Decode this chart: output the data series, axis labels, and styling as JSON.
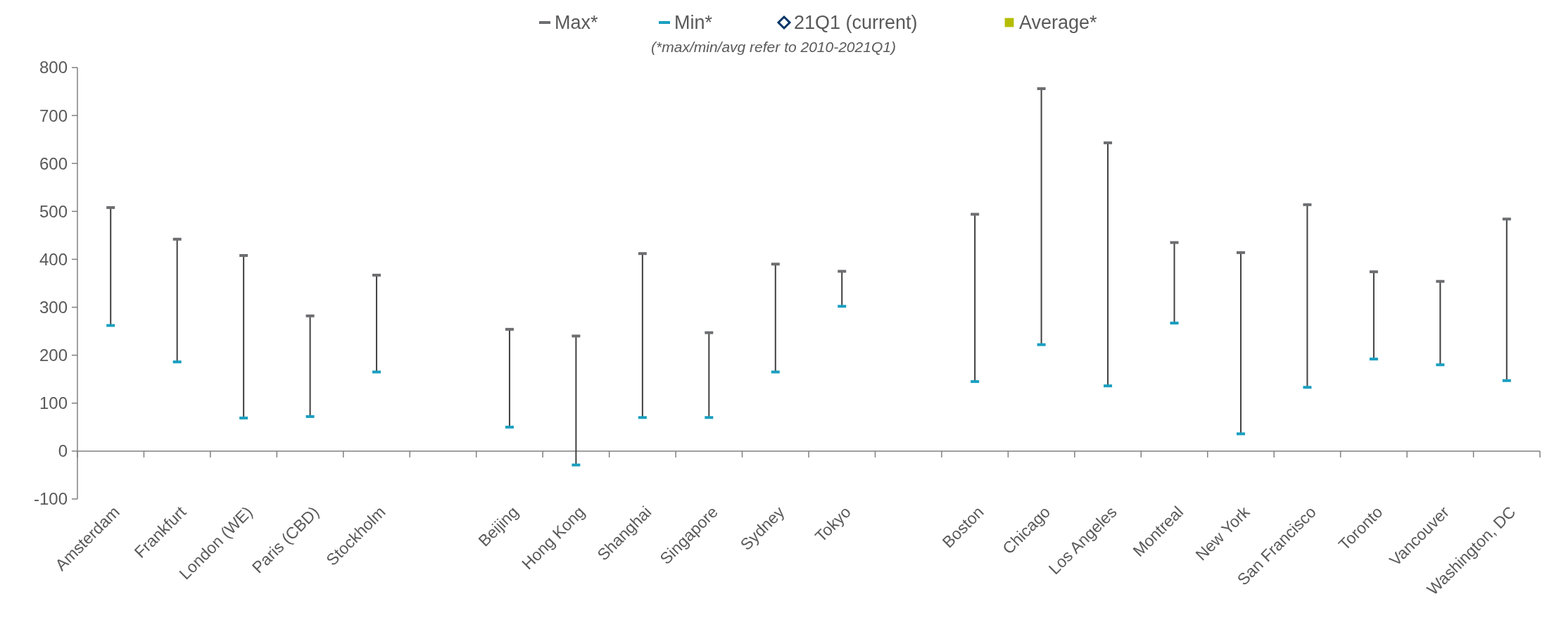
{
  "chart_data": {
    "type": "scatter",
    "categories": [
      "Amsterdam",
      "Frankfurt",
      "London (WE)",
      "Paris (CBD)",
      "Stockholm",
      null,
      "Beijing",
      "Hong Kong",
      "Shanghai",
      "Singapore",
      "Sydney",
      "Tokyo",
      null,
      "Boston",
      "Chicago",
      "Los Angeles",
      "Montreal",
      "New York",
      "San Francisco",
      "Toronto",
      "Vancouver",
      "Washington, DC"
    ],
    "series": [
      {
        "name": "Max*",
        "color": "#6d6e71",
        "values": [
          508,
          442,
          408,
          282,
          367,
          null,
          254,
          240,
          412,
          247,
          390,
          375,
          null,
          494,
          756,
          643,
          435,
          414,
          514,
          374,
          354,
          484
        ]
      },
      {
        "name": "Min*",
        "color": "#1a9fc0",
        "values": [
          262,
          186,
          69,
          72,
          165,
          null,
          50,
          -29,
          70,
          70,
          165,
          302,
          null,
          145,
          222,
          136,
          267,
          36,
          133,
          192,
          180,
          147
        ]
      },
      {
        "name": "21Q1 (current)",
        "color": "#003366",
        "marker": "diamond",
        "values": [
          null,
          null,
          null,
          null,
          null,
          null,
          null,
          null,
          null,
          null,
          null,
          null,
          null,
          null,
          null,
          null,
          null,
          null,
          null,
          null,
          null,
          null
        ]
      },
      {
        "name": "Average*",
        "color": "#b5bd00",
        "marker": "square",
        "values": [
          null,
          null,
          null,
          null,
          null,
          null,
          null,
          null,
          null,
          null,
          null,
          null,
          null,
          null,
          null,
          null,
          null,
          null,
          null,
          null,
          null,
          null
        ]
      }
    ],
    "annotations": [
      "(*max/min/avg refer to 2010-2021Q1)"
    ],
    "ylim": [
      -100,
      800
    ],
    "yticks": [
      -100,
      0,
      100,
      200,
      300,
      400,
      500,
      600,
      700,
      800
    ],
    "legend": "top"
  }
}
